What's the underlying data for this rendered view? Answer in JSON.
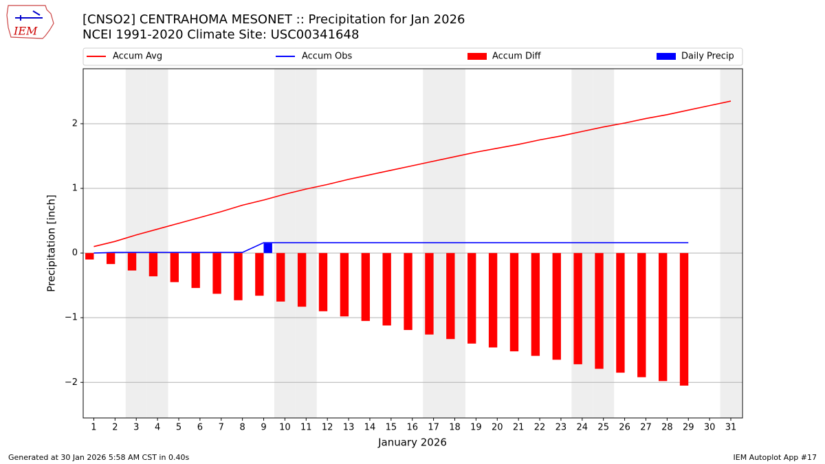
{
  "chart_data": {
    "type": "bar",
    "title": "[CNSO2] CENTRAHOMA MESONET :: Precipitation for Jan 2026",
    "subtitle": "NCEI 1991-2020 Climate Site: USC00341648",
    "logo_text": "IEM",
    "x_label": "January 2026",
    "y_label": "Precipitation [inch]",
    "footer_left": "Generated at 30 Jan 2026 5:58 AM CST in 0.40s",
    "footer_right": "IEM Autoplot App #17",
    "x": [
      1,
      2,
      3,
      4,
      5,
      6,
      7,
      8,
      9,
      10,
      11,
      12,
      13,
      14,
      15,
      16,
      17,
      18,
      19,
      20,
      21,
      22,
      23,
      24,
      25,
      26,
      27,
      28,
      29,
      30,
      31
    ],
    "xlim": [
      0.5,
      31.55
    ],
    "xticks": [
      1,
      2,
      3,
      4,
      5,
      6,
      7,
      8,
      9,
      10,
      11,
      12,
      13,
      14,
      15,
      16,
      17,
      18,
      19,
      20,
      21,
      22,
      23,
      24,
      25,
      26,
      27,
      28,
      29,
      30,
      31
    ],
    "ylim": [
      -2.55,
      2.85
    ],
    "yticks": [
      {
        "value": -2,
        "label": "−2"
      },
      {
        "value": -1,
        "label": "−1"
      },
      0,
      1,
      2
    ],
    "grid": true,
    "shaded_days": [
      3,
      4,
      10,
      11,
      17,
      18,
      24,
      25,
      31
    ],
    "shade_color": "#eeeeee",
    "series": [
      {
        "name": "Accum Avg",
        "color": "#ff0000",
        "mark": "line",
        "values": [
          0.1,
          0.18,
          0.28,
          0.37,
          0.46,
          0.55,
          0.64,
          0.74,
          0.82,
          0.91,
          0.99,
          1.06,
          1.14,
          1.21,
          1.28,
          1.35,
          1.42,
          1.49,
          1.56,
          1.62,
          1.68,
          1.75,
          1.81,
          1.88,
          1.95,
          2.01,
          2.08,
          2.14,
          2.21,
          2.28,
          2.35
        ]
      },
      {
        "name": "Accum Obs",
        "color": "#0000ff",
        "mark": "line",
        "values": [
          0.0,
          0.01,
          0.01,
          0.01,
          0.01,
          0.01,
          0.01,
          0.01,
          0.16,
          0.16,
          0.16,
          0.16,
          0.16,
          0.16,
          0.16,
          0.16,
          0.16,
          0.16,
          0.16,
          0.16,
          0.16,
          0.16,
          0.16,
          0.16,
          0.16,
          0.16,
          0.16,
          0.16,
          0.16,
          null,
          null
        ]
      },
      {
        "name": "Accum Diff",
        "color": "#ff0000",
        "mark": "bar",
        "values": [
          -0.1,
          -0.17,
          -0.27,
          -0.36,
          -0.45,
          -0.54,
          -0.63,
          -0.73,
          -0.66,
          -0.75,
          -0.83,
          -0.9,
          -0.98,
          -1.05,
          -1.12,
          -1.19,
          -1.26,
          -1.33,
          -1.4,
          -1.46,
          -1.52,
          -1.59,
          -1.65,
          -1.72,
          -1.79,
          -1.85,
          -1.92,
          -1.98,
          -2.05,
          null,
          null
        ]
      },
      {
        "name": "Daily Precip",
        "color": "#0000ff",
        "mark": "bar",
        "values": [
          0,
          0.01,
          0,
          0,
          0,
          0,
          0,
          0,
          0.15,
          0,
          0,
          0,
          0,
          0,
          0,
          0,
          0,
          0,
          0,
          0,
          0,
          0,
          0,
          0,
          0,
          0,
          0,
          0,
          0,
          null,
          null
        ]
      }
    ]
  }
}
